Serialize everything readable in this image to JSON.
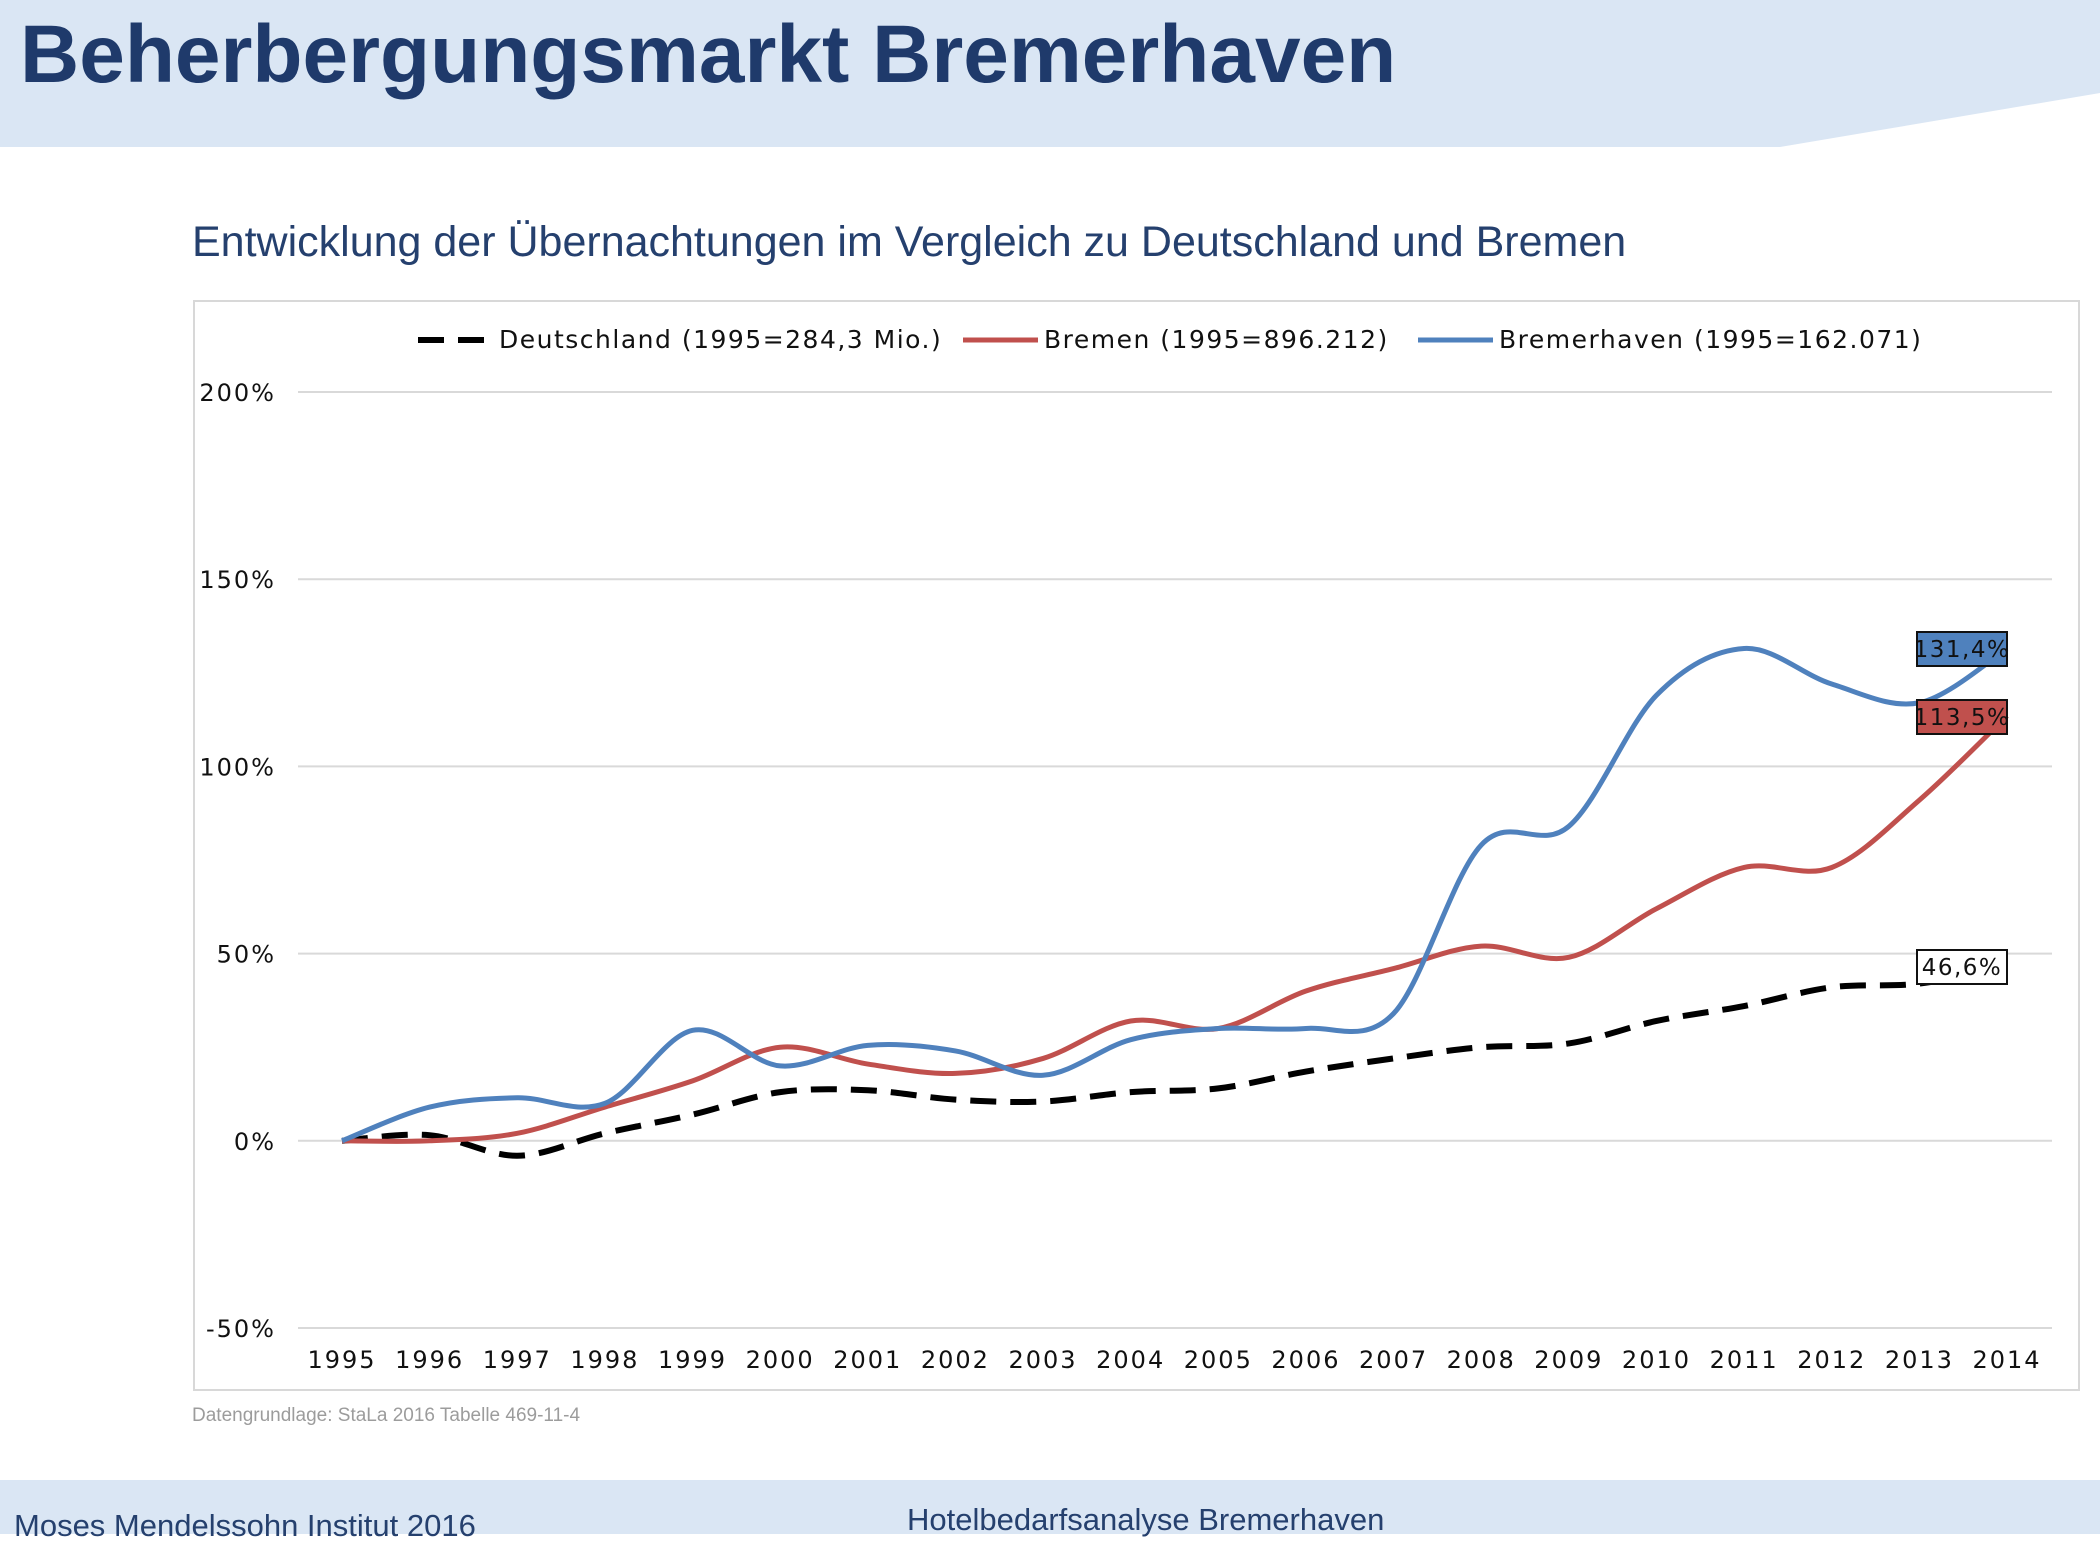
{
  "page": {
    "title": "Beherbergungsmarkt Bremerhaven",
    "subtitle": "Entwicklung der Übernachtungen im Vergleich zu Deutschland und Bremen",
    "source_note": "Datengrundlage: StaLa 2016 Tabelle 469-11-4",
    "footer_left": "Moses Mendelssohn Institut 2016",
    "footer_center": "Hotelbedarfsanalyse Bremerhaven"
  },
  "colors": {
    "header_band": "#dae6f4",
    "title": "#1f3a6b",
    "deutschland": "#000000",
    "bremen": "#c0504d",
    "bremerhaven": "#4f81bd"
  },
  "chart_data": {
    "type": "line",
    "title": "Entwicklung der Übernachtungen im Vergleich zu Deutschland und Bremen",
    "xlabel": "",
    "ylabel": "",
    "categories": [
      "1995",
      "1996",
      "1997",
      "1998",
      "1999",
      "2000",
      "2001",
      "2002",
      "2003",
      "2004",
      "2005",
      "2006",
      "2007",
      "2008",
      "2009",
      "2010",
      "2011",
      "2012",
      "2013",
      "2014"
    ],
    "ylim": [
      -50,
      200
    ],
    "y_ticks": [
      200,
      150,
      100,
      50,
      0,
      -50
    ],
    "y_tick_labels": [
      "200%",
      "150%",
      "100%",
      "50%",
      "0%",
      "-50%"
    ],
    "grid": true,
    "legend_position": "top",
    "smooth": true,
    "series": [
      {
        "key": "deutschland",
        "name": "Deutschland (1995=284,3 Mio.)",
        "color": "#000000",
        "dashed": true,
        "values": [
          0,
          1.5,
          -4,
          2,
          7,
          13,
          13.5,
          11,
          10.5,
          13,
          14,
          18.5,
          22,
          25,
          26,
          32,
          36,
          41,
          42,
          46.6
        ],
        "end_label": "46,6%",
        "end_label_bg": "#ffffff"
      },
      {
        "key": "bremen",
        "name": "Bremen (1995=896.212)",
        "color": "#c0504d",
        "dashed": false,
        "values": [
          0,
          0,
          2,
          9,
          16,
          25,
          20.5,
          18,
          22,
          32,
          30,
          40,
          46,
          52,
          49,
          62,
          73,
          73,
          91,
          113.5
        ],
        "end_label": "113,5%",
        "end_label_bg": "#c0504d"
      },
      {
        "key": "bremerhaven",
        "name": "Bremerhaven (1995=162.071)",
        "color": "#4f81bd",
        "dashed": false,
        "values": [
          0,
          9,
          11.5,
          10,
          29.5,
          20,
          25.5,
          24,
          17.5,
          27,
          30,
          30,
          34,
          79,
          84,
          119,
          131.5,
          122,
          117,
          131.4
        ],
        "end_label": "131,4%",
        "end_label_bg": "#4f81bd"
      }
    ]
  }
}
